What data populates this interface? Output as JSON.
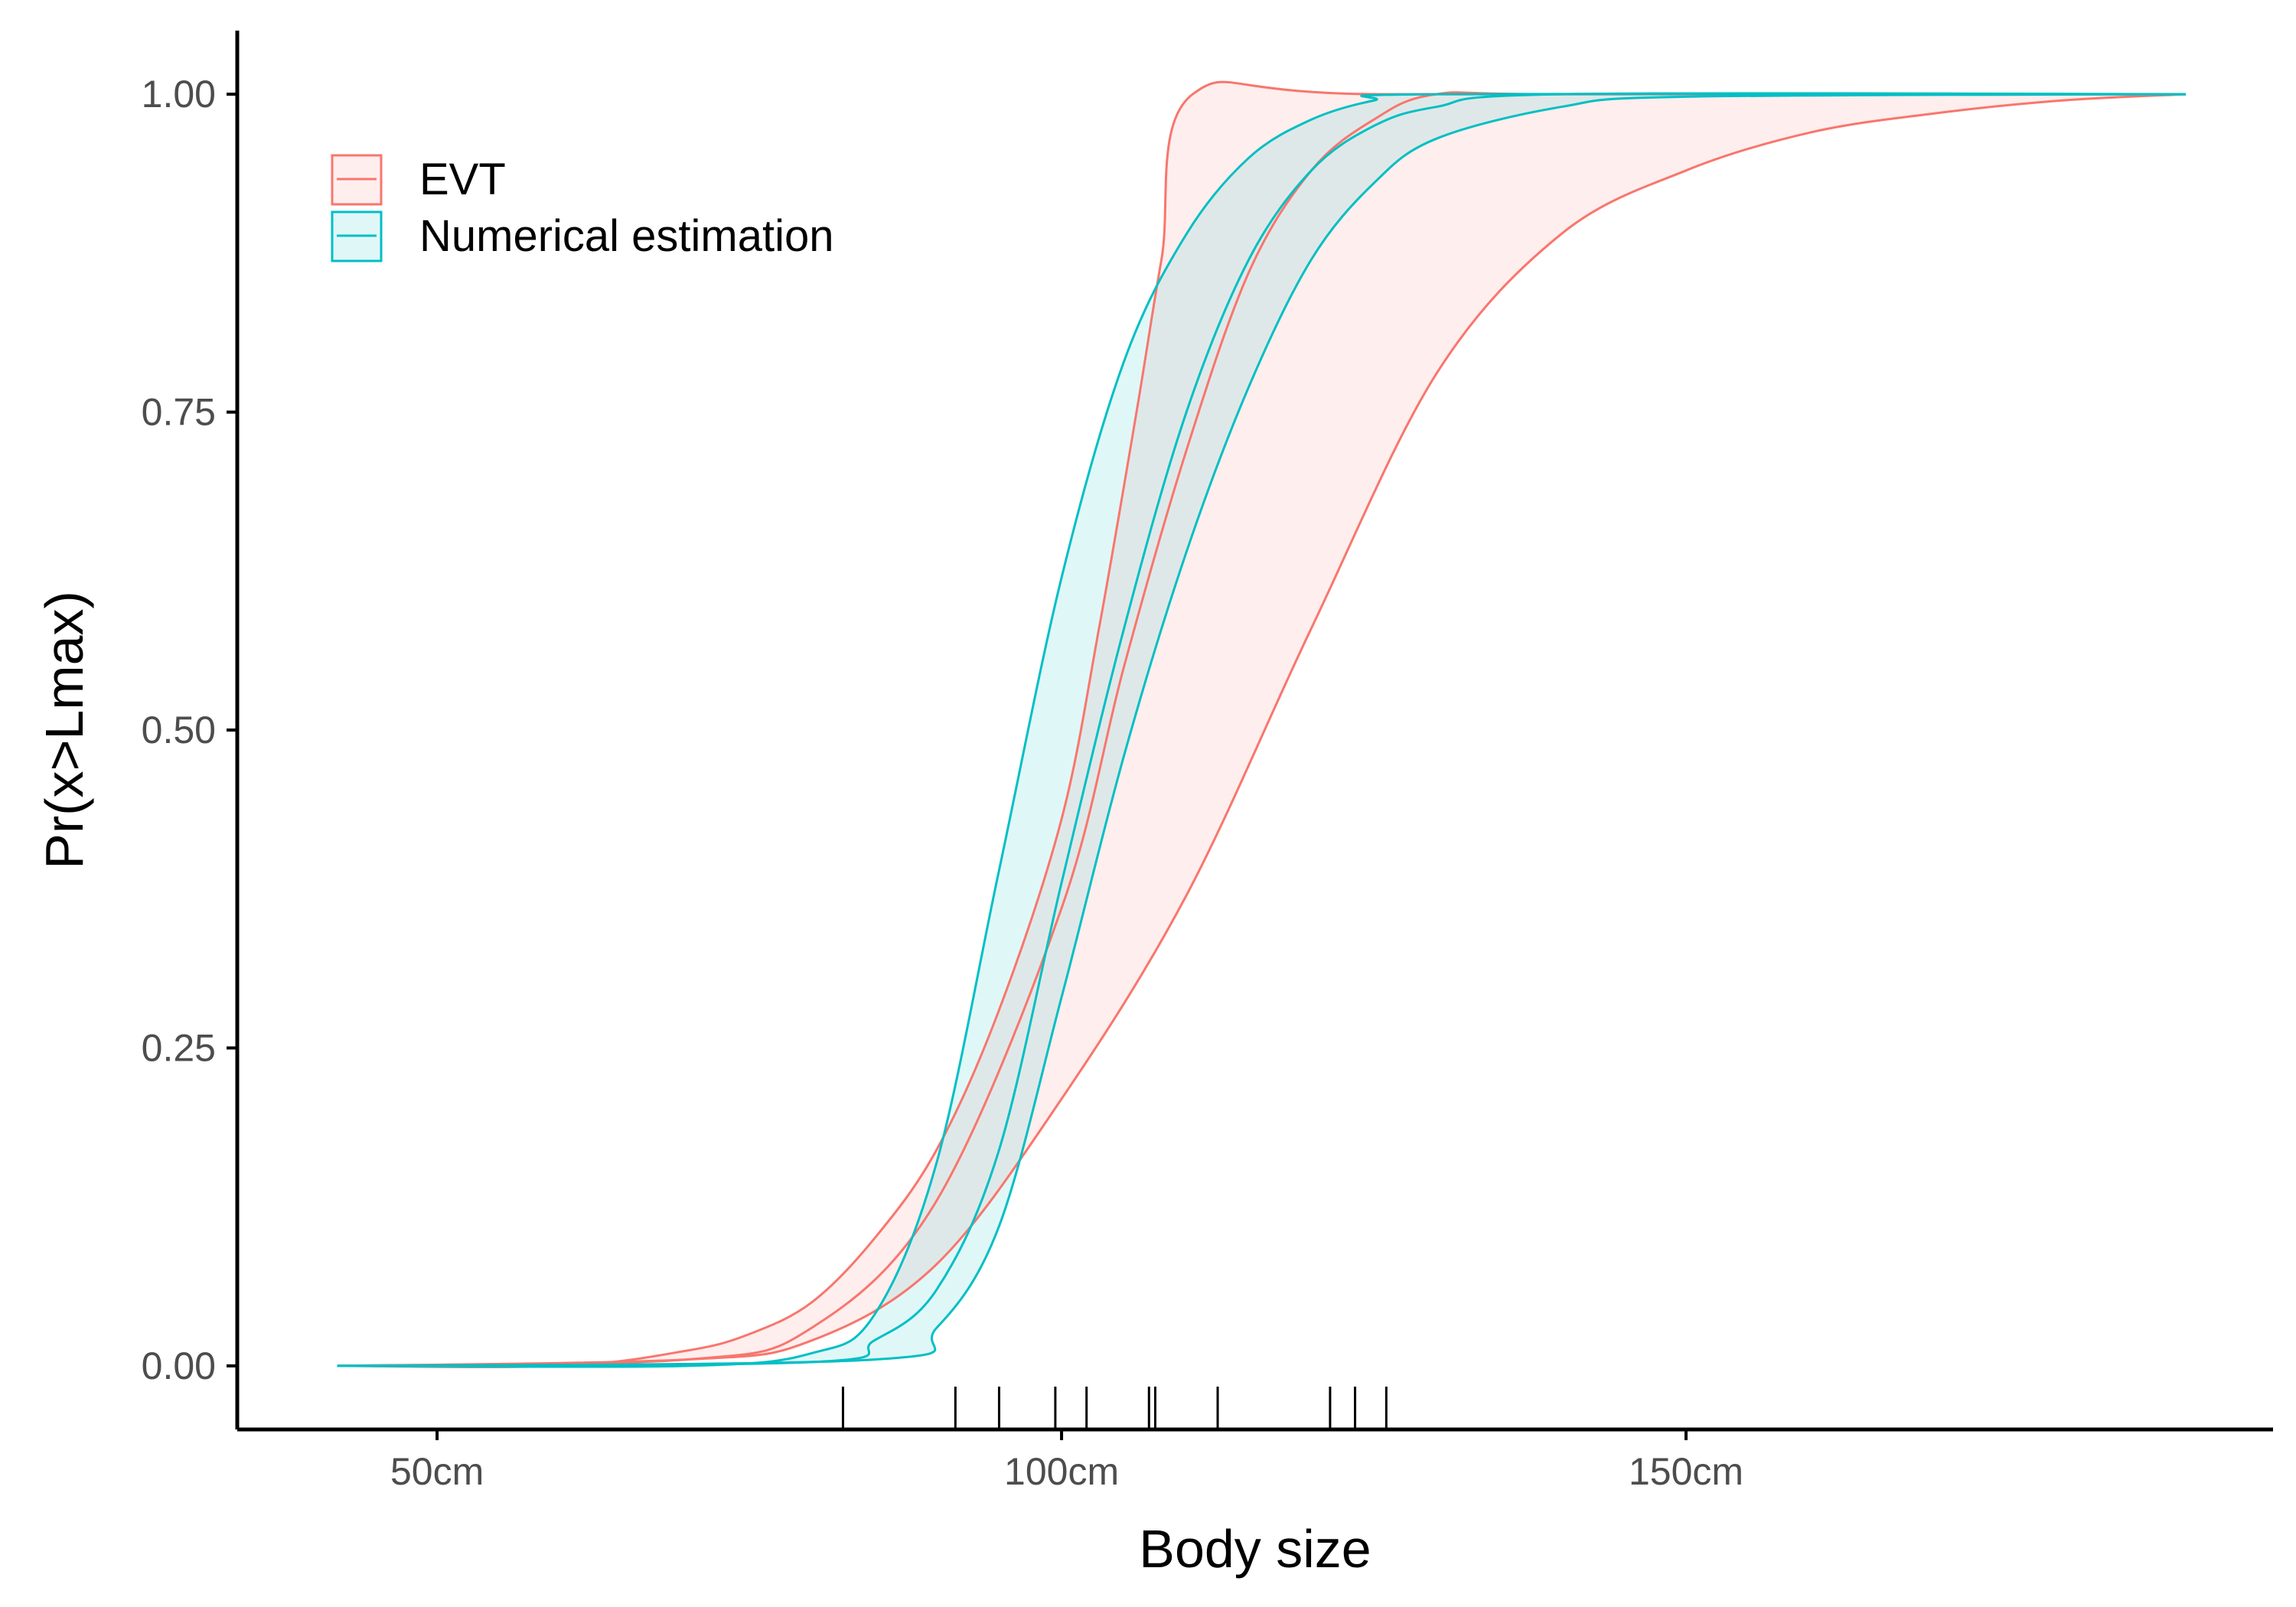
{
  "chart_data": {
    "type": "line",
    "title": "",
    "xlabel": "Body size",
    "ylabel": "Pr(x>Lmax)",
    "xlim": [
      34,
      197
    ],
    "ylim": [
      -0.05,
      1.05
    ],
    "x_ticks": [
      50,
      100,
      150
    ],
    "x_tick_labels": [
      "50cm",
      "100cm",
      "150cm"
    ],
    "y_ticks": [
      0,
      0.25,
      0.5,
      0.75,
      1
    ],
    "y_tick_labels": [
      "0.00",
      "0.25",
      "0.50",
      "0.75",
      "1.00"
    ],
    "grid": false,
    "legend_position": "top-left",
    "series": [
      {
        "name": "EVT",
        "color": "#F8766D",
        "x": [
          42,
          60,
          70,
          75,
          80,
          85,
          90,
          95,
          100,
          103,
          106,
          108,
          110.5,
          126,
          190
        ],
        "median": [
          0.0,
          0.0,
          0.005,
          0.012,
          0.028,
          0.06,
          0.12,
          0.23,
          0.41,
          0.56,
          0.72,
          0.83,
          1.0,
          1.0,
          1.0
        ],
        "lower": [
          0.0,
          0.0,
          0.005,
          0.01,
          0.02,
          0.045,
          0.08,
          0.14,
          0.21,
          0.27,
          0.33,
          0.37,
          0.41,
          0.79,
          1.0
        ],
        "upper": [
          0.0,
          0.0,
          0.012,
          0.025,
          0.05,
          0.1,
          0.17,
          0.28,
          0.43,
          0.58,
          0.75,
          0.87,
          1.0,
          1.0,
          1.0
        ],
        "lower_curve_x": [
          42,
          70,
          80,
          90,
          100,
          110,
          120,
          130,
          140,
          150,
          160,
          170,
          180,
          190
        ],
        "lower_curve_y": [
          0.0,
          0.005,
          0.02,
          0.08,
          0.21,
          0.37,
          0.58,
          0.78,
          0.89,
          0.94,
          0.97,
          0.985,
          0.995,
          1.0
        ],
        "middle_curve_x": [
          42,
          70,
          80,
          90,
          100,
          105,
          110,
          115,
          120,
          125,
          130,
          140,
          190
        ],
        "middle_curve_y": [
          0.0,
          0.005,
          0.03,
          0.13,
          0.36,
          0.55,
          0.72,
          0.86,
          0.94,
          0.98,
          1.0,
          1.0,
          1.0
        ]
      },
      {
        "name": "Numerical estimation",
        "color": "#00BFC4",
        "upper_x": [
          42,
          70,
          80,
          85,
          90,
          95,
          100,
          105,
          110,
          115,
          120,
          125,
          130,
          190
        ],
        "upper_y": [
          0.0,
          0.0,
          0.01,
          0.04,
          0.16,
          0.39,
          0.62,
          0.79,
          0.89,
          0.95,
          0.98,
          0.995,
          1.0,
          1.0
        ],
        "middle_x": [
          42,
          80,
          85,
          90,
          95,
          100,
          105,
          110,
          115,
          120,
          125,
          130,
          140,
          190
        ],
        "middle_y": [
          0.0,
          0.003,
          0.02,
          0.06,
          0.17,
          0.38,
          0.58,
          0.75,
          0.87,
          0.94,
          0.975,
          0.99,
          1.0,
          1.0
        ],
        "lower_x": [
          42,
          85,
          90,
          95,
          100,
          105,
          110,
          115,
          120,
          125,
          130,
          140,
          150,
          190
        ],
        "lower_y": [
          0.0,
          0.005,
          0.03,
          0.11,
          0.29,
          0.48,
          0.64,
          0.77,
          0.87,
          0.93,
          0.965,
          0.99,
          0.998,
          1.0
        ]
      }
    ],
    "rug_x": [
      82.5,
      91.5,
      95,
      99.5,
      102,
      107,
      107.5,
      112.5,
      121.5,
      123.5,
      126
    ]
  }
}
